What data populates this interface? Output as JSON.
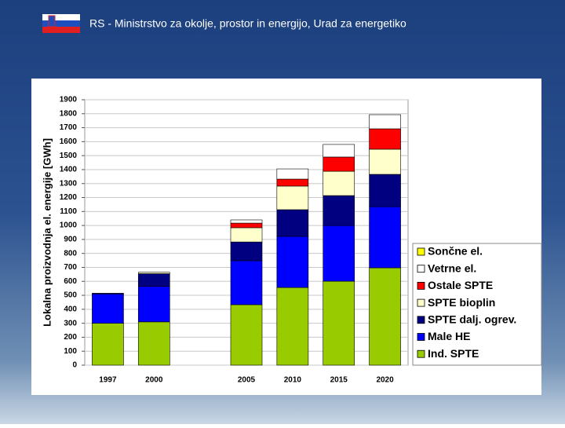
{
  "header": {
    "title": "RS - Ministrstvo za okolje, prostor in energijo, Urad za energetiko"
  },
  "chart_data": {
    "type": "stacked_bar",
    "y_label": "Lokalna proizvodnja el. energije [GWh]",
    "categories": [
      "1997",
      "2000",
      null,
      "2005",
      "2010",
      "2015",
      "2020"
    ],
    "series": [
      {
        "name": "Ind. SPTE",
        "color": "#99cc00",
        "values": [
          300,
          310,
          null,
          433,
          556,
          601,
          697
        ]
      },
      {
        "name": "Male HE",
        "color": "#0000ff",
        "values": [
          210,
          255,
          null,
          315,
          366,
          399,
          438
        ]
      },
      {
        "name": "SPTE dalj. ogrev.",
        "color": "#000080",
        "values": [
          5,
          90,
          null,
          134,
          191,
          214,
          231
        ]
      },
      {
        "name": "SPTE bioplin",
        "color": "#ffffcc",
        "values": [
          0,
          10,
          null,
          102,
          169,
          174,
          180
        ]
      },
      {
        "name": "Ostale SPTE",
        "color": "#ff0000",
        "values": [
          0,
          0,
          null,
          33,
          50,
          102,
          146
        ]
      },
      {
        "name": "Vetrne el.",
        "color": "#ffffff",
        "values": [
          0,
          0,
          null,
          23,
          73,
          90,
          101
        ]
      },
      {
        "name": "Sončne el.",
        "color": "#ffff00",
        "values": [
          0,
          0,
          null,
          0,
          0,
          0,
          0
        ]
      }
    ],
    "ylim": [
      0,
      1900
    ],
    "yticks": [
      0,
      100,
      200,
      300,
      400,
      500,
      600,
      700,
      800,
      900,
      1000,
      1100,
      1200,
      1300,
      1400,
      1500,
      1600,
      1700,
      1800,
      1900
    ],
    "grid": true
  }
}
